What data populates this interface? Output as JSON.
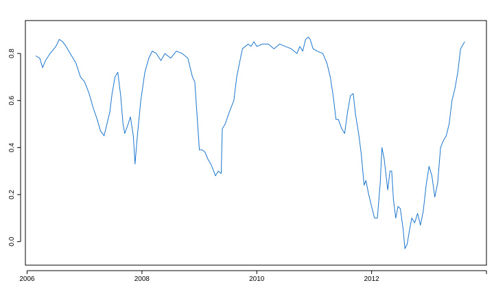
{
  "chart_data": {
    "type": "line",
    "title": "",
    "xlabel": "",
    "ylabel": "",
    "xlim": [
      2005.97,
      2014.0
    ],
    "ylim": [
      -0.1,
      0.94
    ],
    "x_ticks": [
      {
        "value": 2006,
        "label": "2006"
      },
      {
        "value": 2008,
        "label": "2008"
      },
      {
        "value": 2010,
        "label": "2010"
      },
      {
        "value": 2012,
        "label": "2012"
      },
      {
        "value": 2014,
        "label": ""
      }
    ],
    "y_ticks": [
      {
        "value": 0.0,
        "label": "0.0"
      },
      {
        "value": 0.2,
        "label": "0.2"
      },
      {
        "value": 0.4,
        "label": "0.4"
      },
      {
        "value": 0.6,
        "label": "0.6"
      },
      {
        "value": 0.8,
        "label": "0.8"
      }
    ],
    "grid": false,
    "legend": "none",
    "color": "#1874CD",
    "series": [
      {
        "x": [
          2006.15,
          2006.22,
          2006.27,
          2006.32,
          2006.4,
          2006.5,
          2006.56,
          2006.62,
          2006.68,
          2006.75,
          2006.85,
          2006.93,
          2007.0,
          2007.08,
          2007.15,
          2007.22,
          2007.28,
          2007.34,
          2007.38,
          2007.44,
          2007.48,
          2007.53,
          2007.58,
          2007.63,
          2007.67,
          2007.7,
          2007.76,
          2007.8,
          2007.85,
          2007.88,
          2007.92,
          2007.98,
          2008.05,
          2008.12,
          2008.18,
          2008.25,
          2008.33,
          2008.4,
          2008.5,
          2008.6,
          2008.7,
          2008.8,
          2008.88,
          2008.92,
          2009.0,
          2009.02,
          2009.05,
          2009.1,
          2009.15,
          2009.2,
          2009.25,
          2009.28,
          2009.33,
          2009.38,
          2009.4,
          2009.45,
          2009.52,
          2009.6,
          2009.65,
          2009.7,
          2009.75,
          2009.8,
          2009.85,
          2009.9,
          2009.95,
          2010.0,
          2010.1,
          2010.2,
          2010.3,
          2010.4,
          2010.5,
          2010.6,
          2010.7,
          2010.75,
          2010.8,
          2010.85,
          2010.9,
          2010.93,
          2010.98,
          2011.05,
          2011.15,
          2011.22,
          2011.28,
          2011.33,
          2011.38,
          2011.42,
          2011.48,
          2011.53,
          2011.58,
          2011.63,
          2011.68,
          2011.72,
          2011.78,
          2011.82,
          2011.87,
          2011.9,
          2011.95,
          2012.0,
          2012.05,
          2012.1,
          2012.15,
          2012.18,
          2012.22,
          2012.28,
          2012.32,
          2012.35,
          2012.38,
          2012.42,
          2012.46,
          2012.5,
          2012.55,
          2012.58,
          2012.62,
          2012.66,
          2012.7,
          2012.75,
          2012.8,
          2012.85,
          2012.9,
          2012.95,
          2013.0,
          2013.05,
          2013.1,
          2013.15,
          2013.2,
          2013.25,
          2013.3,
          2013.35,
          2013.4,
          2013.45,
          2013.5,
          2013.55,
          2013.62
        ],
        "y": [
          0.79,
          0.78,
          0.74,
          0.77,
          0.8,
          0.83,
          0.86,
          0.85,
          0.83,
          0.8,
          0.76,
          0.7,
          0.68,
          0.63,
          0.57,
          0.52,
          0.47,
          0.45,
          0.49,
          0.55,
          0.63,
          0.7,
          0.72,
          0.62,
          0.5,
          0.46,
          0.5,
          0.53,
          0.45,
          0.33,
          0.45,
          0.6,
          0.72,
          0.78,
          0.81,
          0.8,
          0.77,
          0.8,
          0.78,
          0.81,
          0.8,
          0.78,
          0.7,
          0.68,
          0.39,
          0.39,
          0.39,
          0.38,
          0.35,
          0.33,
          0.3,
          0.28,
          0.3,
          0.29,
          0.48,
          0.5,
          0.55,
          0.6,
          0.7,
          0.76,
          0.82,
          0.83,
          0.84,
          0.83,
          0.85,
          0.83,
          0.84,
          0.84,
          0.82,
          0.84,
          0.83,
          0.82,
          0.8,
          0.83,
          0.81,
          0.86,
          0.87,
          0.86,
          0.82,
          0.81,
          0.8,
          0.76,
          0.7,
          0.62,
          0.52,
          0.52,
          0.48,
          0.46,
          0.55,
          0.62,
          0.63,
          0.54,
          0.45,
          0.37,
          0.24,
          0.26,
          0.2,
          0.15,
          0.1,
          0.1,
          0.25,
          0.4,
          0.35,
          0.22,
          0.3,
          0.3,
          0.18,
          0.1,
          0.15,
          0.14,
          0.05,
          -0.03,
          -0.01,
          0.05,
          0.1,
          0.08,
          0.12,
          0.07,
          0.13,
          0.24,
          0.32,
          0.28,
          0.19,
          0.25,
          0.4,
          0.43,
          0.45,
          0.5,
          0.6,
          0.65,
          0.72,
          0.82,
          0.85
        ]
      }
    ]
  }
}
